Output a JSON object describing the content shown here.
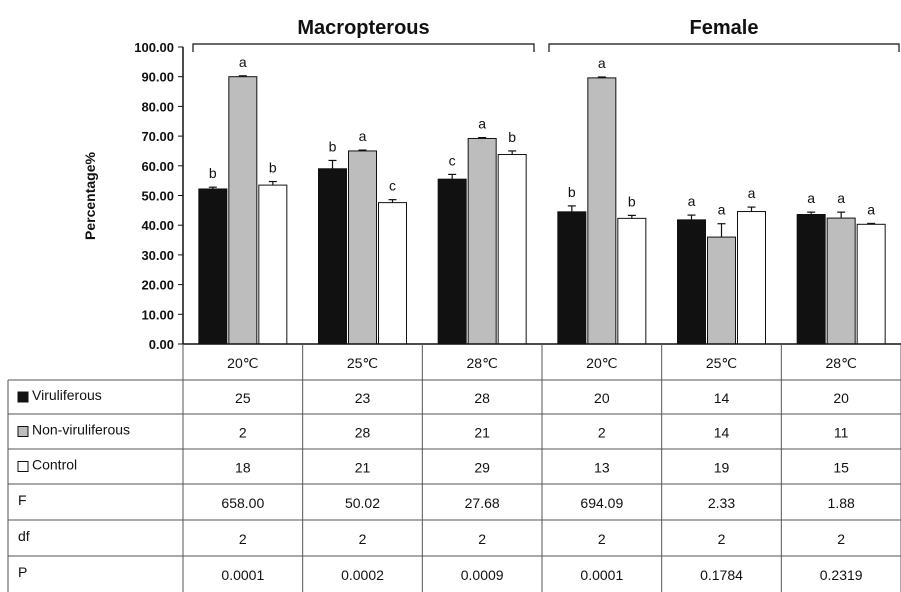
{
  "chart_data": {
    "type": "bar",
    "ylabel": "Percentage%",
    "ylim": [
      0,
      100
    ],
    "yticks": [
      "0.00",
      "10.00",
      "20.00",
      "30.00",
      "40.00",
      "50.00",
      "60.00",
      "70.00",
      "80.00",
      "90.00",
      "100.00"
    ],
    "groups": [
      {
        "title": "Macropterous",
        "categories": [
          "20℃",
          "25℃",
          "28℃"
        ]
      },
      {
        "title": "Female",
        "categories": [
          "20℃",
          "25℃",
          "28℃"
        ]
      }
    ],
    "categories": [
      "20℃",
      "25℃",
      "28℃",
      "20℃",
      "25℃",
      "28℃"
    ],
    "series": [
      {
        "name": "Viruliferous",
        "color": "#111111",
        "values": [
          52.2,
          59.0,
          55.5,
          44.5,
          41.8,
          43.6
        ],
        "errors": [
          0.6,
          2.8,
          1.6,
          2.0,
          1.6,
          0.8
        ],
        "letters": [
          "b",
          "b",
          "c",
          "b",
          "a",
          "a"
        ]
      },
      {
        "name": "Non-viruliferous",
        "color": "#bdbdbd",
        "values": [
          90.0,
          65.0,
          69.2,
          89.6,
          36.0,
          42.4
        ],
        "errors": [
          0.3,
          0.3,
          0.3,
          0.3,
          4.5,
          2.0
        ],
        "letters": [
          "a",
          "a",
          "a",
          "a",
          "a",
          "a"
        ]
      },
      {
        "name": "Control",
        "color": "#ffffff",
        "values": [
          53.5,
          47.6,
          63.8,
          42.3,
          44.6,
          40.3
        ],
        "errors": [
          1.2,
          1.0,
          1.2,
          1.0,
          1.5,
          0.3
        ],
        "letters": [
          "b",
          "c",
          "b",
          "b",
          "a",
          "a"
        ]
      }
    ],
    "table": {
      "rows": [
        {
          "label": "Viruliferous",
          "marker": "black-square",
          "values": [
            "25",
            "23",
            "28",
            "20",
            "14",
            "20"
          ]
        },
        {
          "label": "Non-viruliferous",
          "marker": "gray-square",
          "values": [
            "2",
            "28",
            "21",
            "2",
            "14",
            "11"
          ]
        },
        {
          "label": "Control",
          "marker": "white-square",
          "values": [
            "18",
            "21",
            "29",
            "13",
            "19",
            "15"
          ]
        },
        {
          "label": "F",
          "values": [
            "658.00",
            "50.02",
            "27.68",
            "694.09",
            "2.33",
            "1.88"
          ]
        },
        {
          "label": "df",
          "values": [
            "2",
            "2",
            "2",
            "2",
            "2",
            "2"
          ]
        },
        {
          "label": "P",
          "values": [
            "0.0001",
            "0.0002",
            "0.0009",
            "0.0001",
            "0.1784",
            "0.2319"
          ]
        }
      ]
    }
  }
}
